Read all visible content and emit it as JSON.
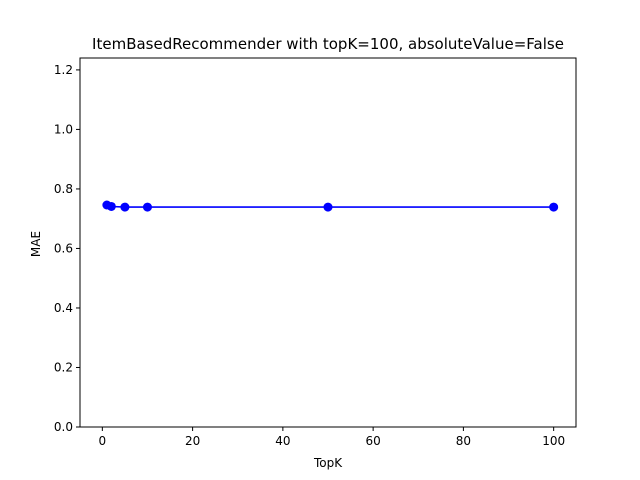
{
  "chart_data": {
    "type": "line",
    "title": "ItemBasedRecommender with topK=100, absoluteValue=False",
    "xlabel": "TopK",
    "ylabel": "MAE",
    "xlim": [
      -4.95,
      104.95
    ],
    "ylim": [
      0,
      1.24
    ],
    "xticks": [
      0,
      20,
      40,
      60,
      80,
      100
    ],
    "xtick_labels": [
      "0",
      "20",
      "40",
      "60",
      "80",
      "100"
    ],
    "yticks": [
      0.0,
      0.2,
      0.4,
      0.6,
      0.8,
      1.0,
      1.2
    ],
    "ytick_labels": [
      "0.0",
      "0.2",
      "0.4",
      "0.6",
      "0.8",
      "1.0",
      "1.2"
    ],
    "grid": false,
    "series": [
      {
        "color": "#0000ff",
        "marker": "circle",
        "x": [
          1,
          2,
          5,
          10,
          50,
          100
        ],
        "y": [
          0.746,
          0.741,
          0.739,
          0.739,
          0.739,
          0.739
        ]
      }
    ]
  }
}
